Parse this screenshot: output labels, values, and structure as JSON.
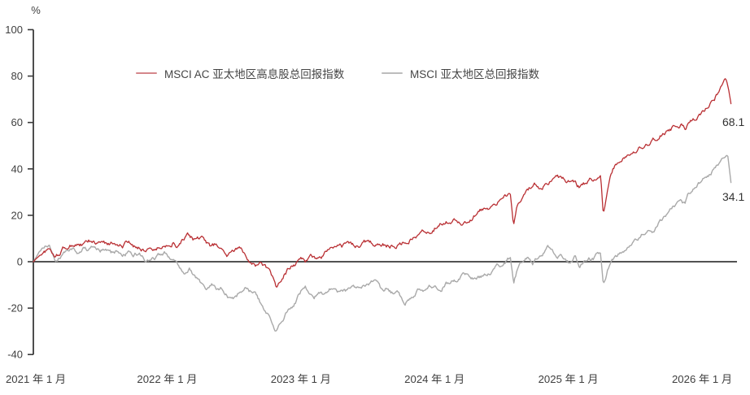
{
  "chart_data": {
    "type": "line",
    "title": "",
    "xlabel": "",
    "ylabel": "%",
    "unit": "%",
    "grid": "off",
    "legend_position": "top-center",
    "y_axis": {
      "min": -40,
      "max": 100,
      "ticks": [
        100,
        80,
        60,
        40,
        20,
        0,
        -20,
        -40
      ]
    },
    "x_axis": {
      "labels": [
        "2021 年 1 月",
        "2022 年 1 月",
        "2023 年 1 月",
        "2024 年 1 月",
        "2025 年 1 月",
        "2026 年 1 月"
      ],
      "months_span": 62.6
    },
    "colors": {
      "axis": "#3a3a3a",
      "zero_line": "#3a3a3a",
      "tick_text": "#3f3f3f",
      "x_label_text": "#3f3f3f"
    },
    "series": [
      {
        "name": "MSCI AC 亚太地区高息股总回报指数",
        "color": "#b92f33",
        "legend_color": "#d5878b",
        "end_label": "68.1",
        "end_value": 68.1,
        "points": [
          [
            0,
            0
          ],
          [
            0.7,
            3.5
          ],
          [
            1.4,
            5
          ],
          [
            2,
            1.5
          ],
          [
            2.7,
            5.5
          ],
          [
            3.4,
            7
          ],
          [
            4,
            8
          ],
          [
            4.5,
            7
          ],
          [
            5,
            8.5
          ],
          [
            5.5,
            7.5
          ],
          [
            6,
            8
          ],
          [
            6.5,
            7
          ],
          [
            7,
            8
          ],
          [
            7.5,
            8.5
          ],
          [
            8,
            7
          ],
          [
            8.5,
            8
          ],
          [
            9,
            6
          ],
          [
            9.5,
            6.5
          ],
          [
            10,
            5.5
          ],
          [
            10.5,
            6.5
          ],
          [
            11,
            5.5
          ],
          [
            11.5,
            6.5
          ],
          [
            12,
            7.5
          ],
          [
            12.5,
            9
          ],
          [
            13,
            7
          ],
          [
            13.5,
            9.5
          ],
          [
            14,
            10.5
          ],
          [
            14.5,
            9
          ],
          [
            15,
            10
          ],
          [
            15.5,
            8
          ],
          [
            16,
            6
          ],
          [
            16.5,
            7
          ],
          [
            17,
            4
          ],
          [
            17.5,
            3
          ],
          [
            18,
            4.5
          ],
          [
            18.5,
            5.5
          ],
          [
            19,
            3.5
          ],
          [
            19.5,
            1
          ],
          [
            20,
            -1.5
          ],
          [
            20.5,
            -0.5
          ],
          [
            21,
            -3
          ],
          [
            21.4,
            -7
          ],
          [
            21.8,
            -12
          ],
          [
            22.2,
            -9
          ],
          [
            22.6,
            -5
          ],
          [
            23,
            -2.5
          ],
          [
            23.5,
            -0.5
          ],
          [
            24,
            1.5
          ],
          [
            24.5,
            0.5
          ],
          [
            25,
            1.5
          ],
          [
            25.5,
            1
          ],
          [
            26,
            3
          ],
          [
            26.5,
            4.5
          ],
          [
            27,
            5.5
          ],
          [
            27.7,
            6
          ],
          [
            28.4,
            7.5
          ],
          [
            29,
            6.5
          ],
          [
            29.5,
            7.5
          ],
          [
            30,
            8.5
          ],
          [
            30.5,
            7.5
          ],
          [
            31,
            9
          ],
          [
            31.5,
            8
          ],
          [
            32,
            7
          ],
          [
            32.5,
            7.5
          ],
          [
            33,
            8
          ],
          [
            33.5,
            10
          ],
          [
            34,
            11
          ],
          [
            34.5,
            12
          ],
          [
            35,
            13.5
          ],
          [
            35.5,
            14
          ],
          [
            36,
            15.5
          ],
          [
            36.5,
            16.5
          ],
          [
            37,
            17
          ],
          [
            37.5,
            18
          ],
          [
            38,
            19
          ],
          [
            38.5,
            17.5
          ],
          [
            39,
            18.5
          ],
          [
            39.5,
            20
          ],
          [
            40,
            21
          ],
          [
            40.5,
            22.5
          ],
          [
            41,
            24
          ],
          [
            41.5,
            23
          ],
          [
            42,
            26
          ],
          [
            42.4,
            28
          ],
          [
            42.8,
            29.5
          ],
          [
            43.1,
            17
          ],
          [
            43.4,
            24
          ],
          [
            43.7,
            27
          ],
          [
            44,
            30
          ],
          [
            44.4,
            31
          ],
          [
            44.9,
            33
          ],
          [
            45.4,
            32
          ],
          [
            45.9,
            34
          ],
          [
            46.4,
            36
          ],
          [
            46.9,
            36.5
          ],
          [
            47.4,
            36
          ],
          [
            47.9,
            34
          ],
          [
            48.4,
            33
          ],
          [
            48.9,
            31.5
          ],
          [
            49.3,
            32.5
          ],
          [
            49.7,
            34
          ],
          [
            50.1,
            35.5
          ],
          [
            50.5,
            36
          ],
          [
            50.9,
            37
          ],
          [
            51.15,
            21
          ],
          [
            51.5,
            30
          ],
          [
            51.8,
            36
          ],
          [
            52.1,
            40
          ],
          [
            52.4,
            42
          ],
          [
            52.8,
            44
          ],
          [
            53.3,
            46
          ],
          [
            53.8,
            47.5
          ],
          [
            54.3,
            49
          ],
          [
            54.8,
            50.5
          ],
          [
            55.3,
            52
          ],
          [
            55.8,
            54
          ],
          [
            56.3,
            56
          ],
          [
            56.8,
            57
          ],
          [
            57.3,
            58
          ],
          [
            57.8,
            59
          ],
          [
            58.2,
            60
          ],
          [
            58.5,
            58
          ],
          [
            58.9,
            60
          ],
          [
            59.3,
            61.5
          ],
          [
            59.7,
            63
          ],
          [
            60.1,
            65
          ],
          [
            60.5,
            67
          ],
          [
            60.9,
            69
          ],
          [
            61.3,
            72
          ],
          [
            61.7,
            75
          ],
          [
            62.1,
            79
          ],
          [
            62.35,
            75
          ],
          [
            62.6,
            68.1
          ]
        ]
      },
      {
        "name": "MSCI 亚太地区总回报指数",
        "color": "#a9a9a9",
        "legend_color": "#bcbcbc",
        "end_label": "34.1",
        "end_value": 34.1,
        "points": [
          [
            0,
            0
          ],
          [
            0.7,
            5
          ],
          [
            1.4,
            7
          ],
          [
            2,
            1
          ],
          [
            2.7,
            4.5
          ],
          [
            3.4,
            6
          ],
          [
            4,
            5
          ],
          [
            4.5,
            6.5
          ],
          [
            5,
            5
          ],
          [
            5.5,
            6
          ],
          [
            6,
            4.5
          ],
          [
            6.5,
            5.5
          ],
          [
            7,
            3.5
          ],
          [
            7.5,
            4.5
          ],
          [
            8,
            3
          ],
          [
            8.5,
            4
          ],
          [
            9,
            2.5
          ],
          [
            9.5,
            3.5
          ],
          [
            10,
            1
          ],
          [
            10.5,
            0
          ],
          [
            11,
            1.5
          ],
          [
            11.5,
            2.5
          ],
          [
            12,
            3.5
          ],
          [
            12.5,
            1.5
          ],
          [
            13,
            -1.5
          ],
          [
            13.5,
            -4
          ],
          [
            14,
            -2.5
          ],
          [
            14.5,
            -6
          ],
          [
            15,
            -9
          ],
          [
            15.5,
            -12
          ],
          [
            16,
            -10.5
          ],
          [
            16.5,
            -13
          ],
          [
            17,
            -12
          ],
          [
            17.5,
            -15
          ],
          [
            18,
            -16
          ],
          [
            18.5,
            -13
          ],
          [
            19,
            -11
          ],
          [
            19.5,
            -13
          ],
          [
            20,
            -15
          ],
          [
            20.5,
            -19
          ],
          [
            21,
            -23
          ],
          [
            21.4,
            -26
          ],
          [
            21.8,
            -30
          ],
          [
            22.3,
            -24
          ],
          [
            22.7,
            -21
          ],
          [
            23,
            -19
          ],
          [
            23.5,
            -17
          ],
          [
            24,
            -13
          ],
          [
            24.4,
            -11.5
          ],
          [
            24.8,
            -14
          ],
          [
            25.2,
            -16
          ],
          [
            25.6,
            -13.5
          ],
          [
            26,
            -14.5
          ],
          [
            26.5,
            -12
          ],
          [
            27,
            -10.5
          ],
          [
            27.5,
            -12.5
          ],
          [
            28,
            -13
          ],
          [
            28.4,
            -12.5
          ],
          [
            29,
            -12
          ],
          [
            29.5,
            -10
          ],
          [
            30,
            -9.5
          ],
          [
            30.6,
            -9
          ],
          [
            31.3,
            -13
          ],
          [
            31.8,
            -11.5
          ],
          [
            32.3,
            -13.5
          ],
          [
            32.8,
            -14
          ],
          [
            33.3,
            -18.5
          ],
          [
            33.7,
            -16.5
          ],
          [
            34.1,
            -16
          ],
          [
            34.5,
            -13
          ],
          [
            35,
            -14
          ],
          [
            35.5,
            -11.5
          ],
          [
            36,
            -10.5
          ],
          [
            36.5,
            -13
          ],
          [
            37,
            -9.5
          ],
          [
            37.5,
            -8.5
          ],
          [
            38,
            -8
          ],
          [
            38.6,
            -5
          ],
          [
            39,
            -4.5
          ],
          [
            39.5,
            -6.5
          ],
          [
            40,
            -7
          ],
          [
            40.8,
            -6
          ],
          [
            41.3,
            -4
          ],
          [
            41.8,
            -2
          ],
          [
            42.3,
            -0.5
          ],
          [
            42.8,
            1.5
          ],
          [
            43.1,
            -8.5
          ],
          [
            43.5,
            -2
          ],
          [
            44,
            0.5
          ],
          [
            44.4,
            1.5
          ],
          [
            44.8,
            -1
          ],
          [
            45.2,
            2
          ],
          [
            45.8,
            5
          ],
          [
            46.2,
            7
          ],
          [
            46.6,
            4
          ],
          [
            47,
            2.5
          ],
          [
            47.4,
            3.5
          ],
          [
            47.8,
            1
          ],
          [
            48.2,
            -1
          ],
          [
            48.6,
            1
          ],
          [
            49,
            -2
          ],
          [
            49.4,
            0.5
          ],
          [
            49.8,
            2
          ],
          [
            50.2,
            1
          ],
          [
            50.6,
            3
          ],
          [
            50.9,
            2.5
          ],
          [
            51.15,
            -10
          ],
          [
            51.5,
            -4
          ],
          [
            51.9,
            0
          ],
          [
            52.3,
            2
          ],
          [
            52.7,
            3.5
          ],
          [
            53.1,
            5
          ],
          [
            53.6,
            7
          ],
          [
            54.1,
            9
          ],
          [
            54.6,
            11.5
          ],
          [
            55.1,
            14
          ],
          [
            55.6,
            13
          ],
          [
            56.1,
            16
          ],
          [
            56.6,
            18
          ],
          [
            57.1,
            21
          ],
          [
            57.6,
            24
          ],
          [
            58.1,
            27
          ],
          [
            58.45,
            25
          ],
          [
            58.85,
            29
          ],
          [
            59.25,
            31
          ],
          [
            59.65,
            33
          ],
          [
            60.05,
            34
          ],
          [
            60.45,
            37
          ],
          [
            60.85,
            39
          ],
          [
            61.25,
            41
          ],
          [
            61.65,
            43
          ],
          [
            62,
            44.5
          ],
          [
            62.3,
            46
          ],
          [
            62.6,
            34.1
          ]
        ]
      }
    ]
  }
}
